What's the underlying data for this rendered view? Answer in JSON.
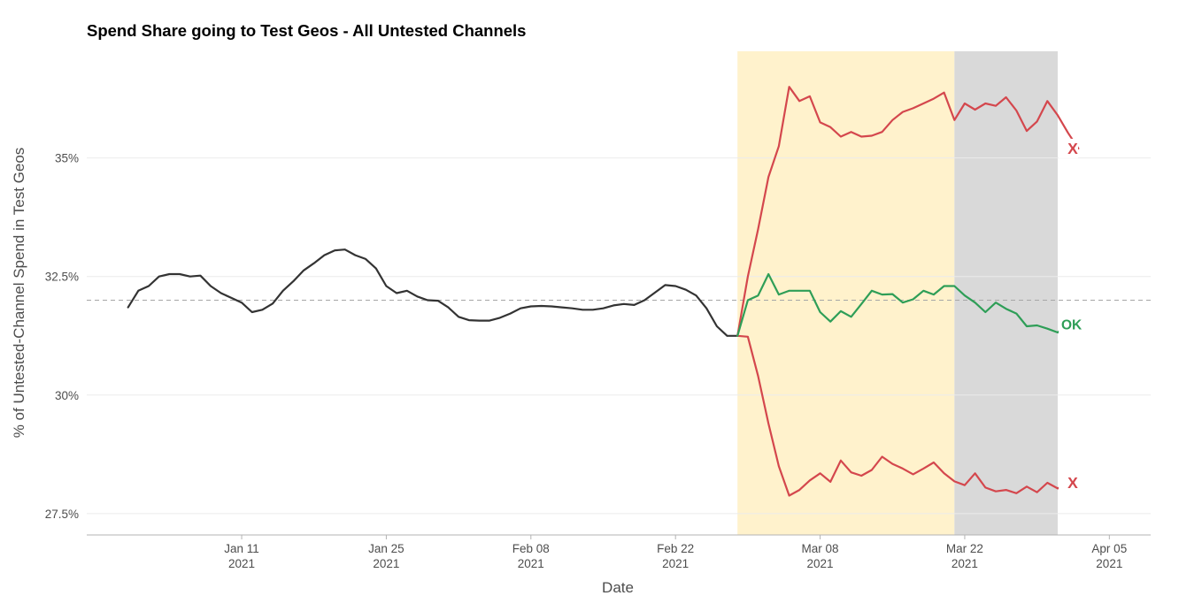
{
  "chart_data": {
    "type": "line",
    "title": "Spend Share going to Test Geos - All Untested Channels",
    "xlabel": "Date",
    "ylabel": "% of Untested-Channel Spend in Test Geos",
    "x_ticks": [
      {
        "date": "2021-01-11",
        "line1": "Jan 11",
        "line2": "2021"
      },
      {
        "date": "2021-01-25",
        "line1": "Jan 25",
        "line2": "2021"
      },
      {
        "date": "2021-02-08",
        "line1": "Feb 08",
        "line2": "2021"
      },
      {
        "date": "2021-02-22",
        "line1": "Feb 22",
        "line2": "2021"
      },
      {
        "date": "2021-03-08",
        "line1": "Mar 08",
        "line2": "2021"
      },
      {
        "date": "2021-03-22",
        "line1": "Mar 22",
        "line2": "2021"
      },
      {
        "date": "2021-04-05",
        "line1": "Apr 05",
        "line2": "2021"
      }
    ],
    "y_ticks": [
      {
        "value": 27.5,
        "label": "27.5%"
      },
      {
        "value": 30,
        "label": "30%"
      },
      {
        "value": 32.5,
        "label": "32.5%"
      },
      {
        "value": 35,
        "label": "35%"
      }
    ],
    "xlim": [
      "2020-12-27",
      "2021-04-09"
    ],
    "ylim": [
      27.05,
      37.25
    ],
    "reference_line": {
      "value": 32.0,
      "style": "dashed",
      "color": "#a6a6a6"
    },
    "shaded_regions": [
      {
        "start": "2021-02-28",
        "end": "2021-03-21",
        "color": "#fff2cc"
      },
      {
        "start": "2021-03-21",
        "end": "2021-03-31",
        "color": "#d9d9d9"
      }
    ],
    "grid": true,
    "series": [
      {
        "color": "#333333",
        "start": "2020-12-31",
        "values": [
          31.85,
          32.2,
          32.3,
          32.5,
          32.55,
          32.55,
          32.5,
          32.52,
          32.3,
          32.15,
          32.05,
          31.95,
          31.75,
          31.8,
          31.93,
          32.2,
          32.4,
          32.63,
          32.78,
          32.95,
          33.05,
          33.07,
          32.95,
          32.87,
          32.67,
          32.3,
          32.15,
          32.2,
          32.08,
          32.0,
          31.99,
          31.85,
          31.65,
          31.58,
          31.57,
          31.57,
          31.63,
          31.72,
          31.83,
          31.87,
          31.88,
          31.87,
          31.85,
          31.83,
          31.8,
          31.8,
          31.83,
          31.89,
          31.92,
          31.9,
          32.0,
          32.16,
          32.32,
          32.3,
          32.22,
          32.1,
          31.83,
          31.45,
          31.25,
          31.25
        ]
      },
      {
        "color": "#d4474d",
        "start": "2021-02-28",
        "values": [
          31.25,
          32.5,
          33.5,
          34.6,
          35.25,
          36.5,
          36.2,
          36.3,
          35.75,
          35.65,
          35.45,
          35.55,
          35.45,
          35.47,
          35.55,
          35.8,
          35.97,
          36.05,
          36.15,
          36.25,
          36.38,
          35.8,
          36.15,
          36.02,
          36.15,
          36.1,
          36.28,
          36.0,
          35.57,
          35.77,
          36.2,
          35.9,
          35.53,
          35.2
        ]
      },
      {
        "color": "#d4474d",
        "start": "2021-02-28",
        "values": [
          31.25,
          31.23,
          30.4,
          29.4,
          28.5,
          27.88,
          28.0,
          28.2,
          28.35,
          28.17,
          28.62,
          28.37,
          28.3,
          28.42,
          28.7,
          28.55,
          28.45,
          28.33,
          28.45,
          28.58,
          28.35,
          28.18,
          28.1,
          28.35,
          28.05,
          27.97,
          28.0,
          27.93,
          28.07,
          27.95,
          28.15,
          28.03,
          28.15
        ]
      },
      {
        "color": "#2e9e57",
        "start": "2021-02-28",
        "values": [
          31.25,
          32.0,
          32.1,
          32.55,
          32.12,
          32.2,
          32.2,
          32.2,
          31.75,
          31.55,
          31.77,
          31.65,
          31.92,
          32.2,
          32.12,
          32.13,
          31.95,
          32.02,
          32.2,
          32.12,
          32.3,
          32.3,
          32.1,
          31.95,
          31.75,
          31.95,
          31.82,
          31.72,
          31.45,
          31.47,
          31.4,
          31.32,
          31.5
        ]
      }
    ],
    "end_labels": [
      {
        "text": "X",
        "color": "#d4474d",
        "y": 35.2
      },
      {
        "text": "OK",
        "color": "#2e9e57",
        "y": 31.5
      },
      {
        "text": "X",
        "color": "#d4474d",
        "y": 28.15
      }
    ]
  }
}
